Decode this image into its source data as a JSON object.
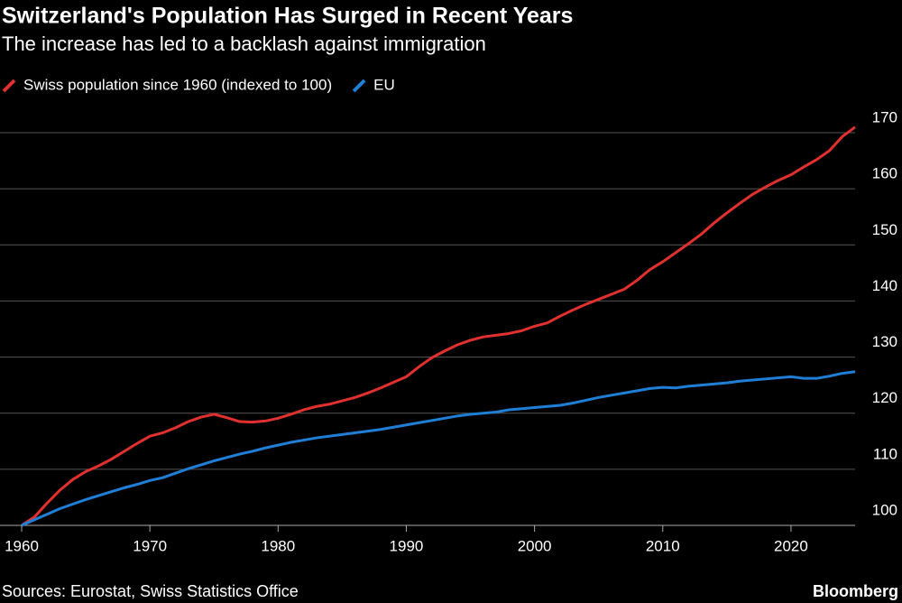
{
  "chart_data": {
    "type": "line",
    "title": "Switzerland's Population Has Surged in Recent Years",
    "subtitle": "The increase has led to a backlash against immigration",
    "source": "Sources: Eurostat, Swiss Statistics Office",
    "brand": "Bloomberg",
    "x": [
      1960,
      1961,
      1962,
      1963,
      1964,
      1965,
      1966,
      1967,
      1968,
      1969,
      1970,
      1971,
      1972,
      1973,
      1974,
      1975,
      1976,
      1977,
      1978,
      1979,
      1980,
      1981,
      1982,
      1983,
      1984,
      1985,
      1986,
      1987,
      1988,
      1989,
      1990,
      1991,
      1992,
      1993,
      1994,
      1995,
      1996,
      1997,
      1998,
      1999,
      2000,
      2001,
      2002,
      2003,
      2004,
      2005,
      2006,
      2007,
      2008,
      2009,
      2010,
      2011,
      2012,
      2013,
      2014,
      2015,
      2016,
      2017,
      2018,
      2019,
      2020,
      2021,
      2022,
      2023,
      2024,
      2025
    ],
    "series": [
      {
        "name": "Swiss population since 1960 (indexed to 100)",
        "color": "#e0312e",
        "values": [
          100,
          101.5,
          104,
          106.3,
          108.2,
          109.6,
          110.6,
          111.8,
          113.2,
          114.6,
          115.9,
          116.5,
          117.4,
          118.5,
          119.3,
          119.8,
          119.2,
          118.5,
          118.4,
          118.6,
          119.1,
          119.8,
          120.6,
          121.2,
          121.6,
          122.2,
          122.8,
          123.6,
          124.5,
          125.5,
          126.5,
          128.3,
          129.9,
          131.1,
          132.2,
          133.0,
          133.6,
          133.9,
          134.2,
          134.7,
          135.5,
          136.1,
          137.3,
          138.4,
          139.4,
          140.3,
          141.2,
          142.1,
          143.7,
          145.6,
          147.0,
          148.6,
          150.2,
          151.9,
          153.9,
          155.7,
          157.4,
          159.0,
          160.3,
          161.5,
          162.5,
          163.9,
          165.2,
          166.8,
          169.3,
          171.0
        ]
      },
      {
        "name": "EU",
        "color": "#1f7fd6",
        "values": [
          100,
          101,
          102,
          103,
          103.8,
          104.6,
          105.3,
          106,
          106.7,
          107.3,
          108,
          108.5,
          109.3,
          110.1,
          110.8,
          111.5,
          112.1,
          112.7,
          113.2,
          113.8,
          114.3,
          114.8,
          115.2,
          115.6,
          115.9,
          116.2,
          116.5,
          116.8,
          117.1,
          117.5,
          117.9,
          118.3,
          118.7,
          119.1,
          119.5,
          119.8,
          120.0,
          120.2,
          120.6,
          120.8,
          121.0,
          121.2,
          121.4,
          121.8,
          122.3,
          122.8,
          123.2,
          123.6,
          124.0,
          124.4,
          124.6,
          124.5,
          124.8,
          125.0,
          125.2,
          125.4,
          125.7,
          125.9,
          126.1,
          126.3,
          126.5,
          126.2,
          126.2,
          126.6,
          127.1,
          127.4
        ]
      }
    ],
    "xlim": [
      1960,
      2025
    ],
    "xticks": [
      1960,
      1970,
      1980,
      1990,
      2000,
      2010,
      2020
    ],
    "ylim": [
      100,
      170
    ],
    "yticks": [
      100,
      110,
      120,
      130,
      140,
      150,
      160,
      170
    ],
    "grid": true
  }
}
